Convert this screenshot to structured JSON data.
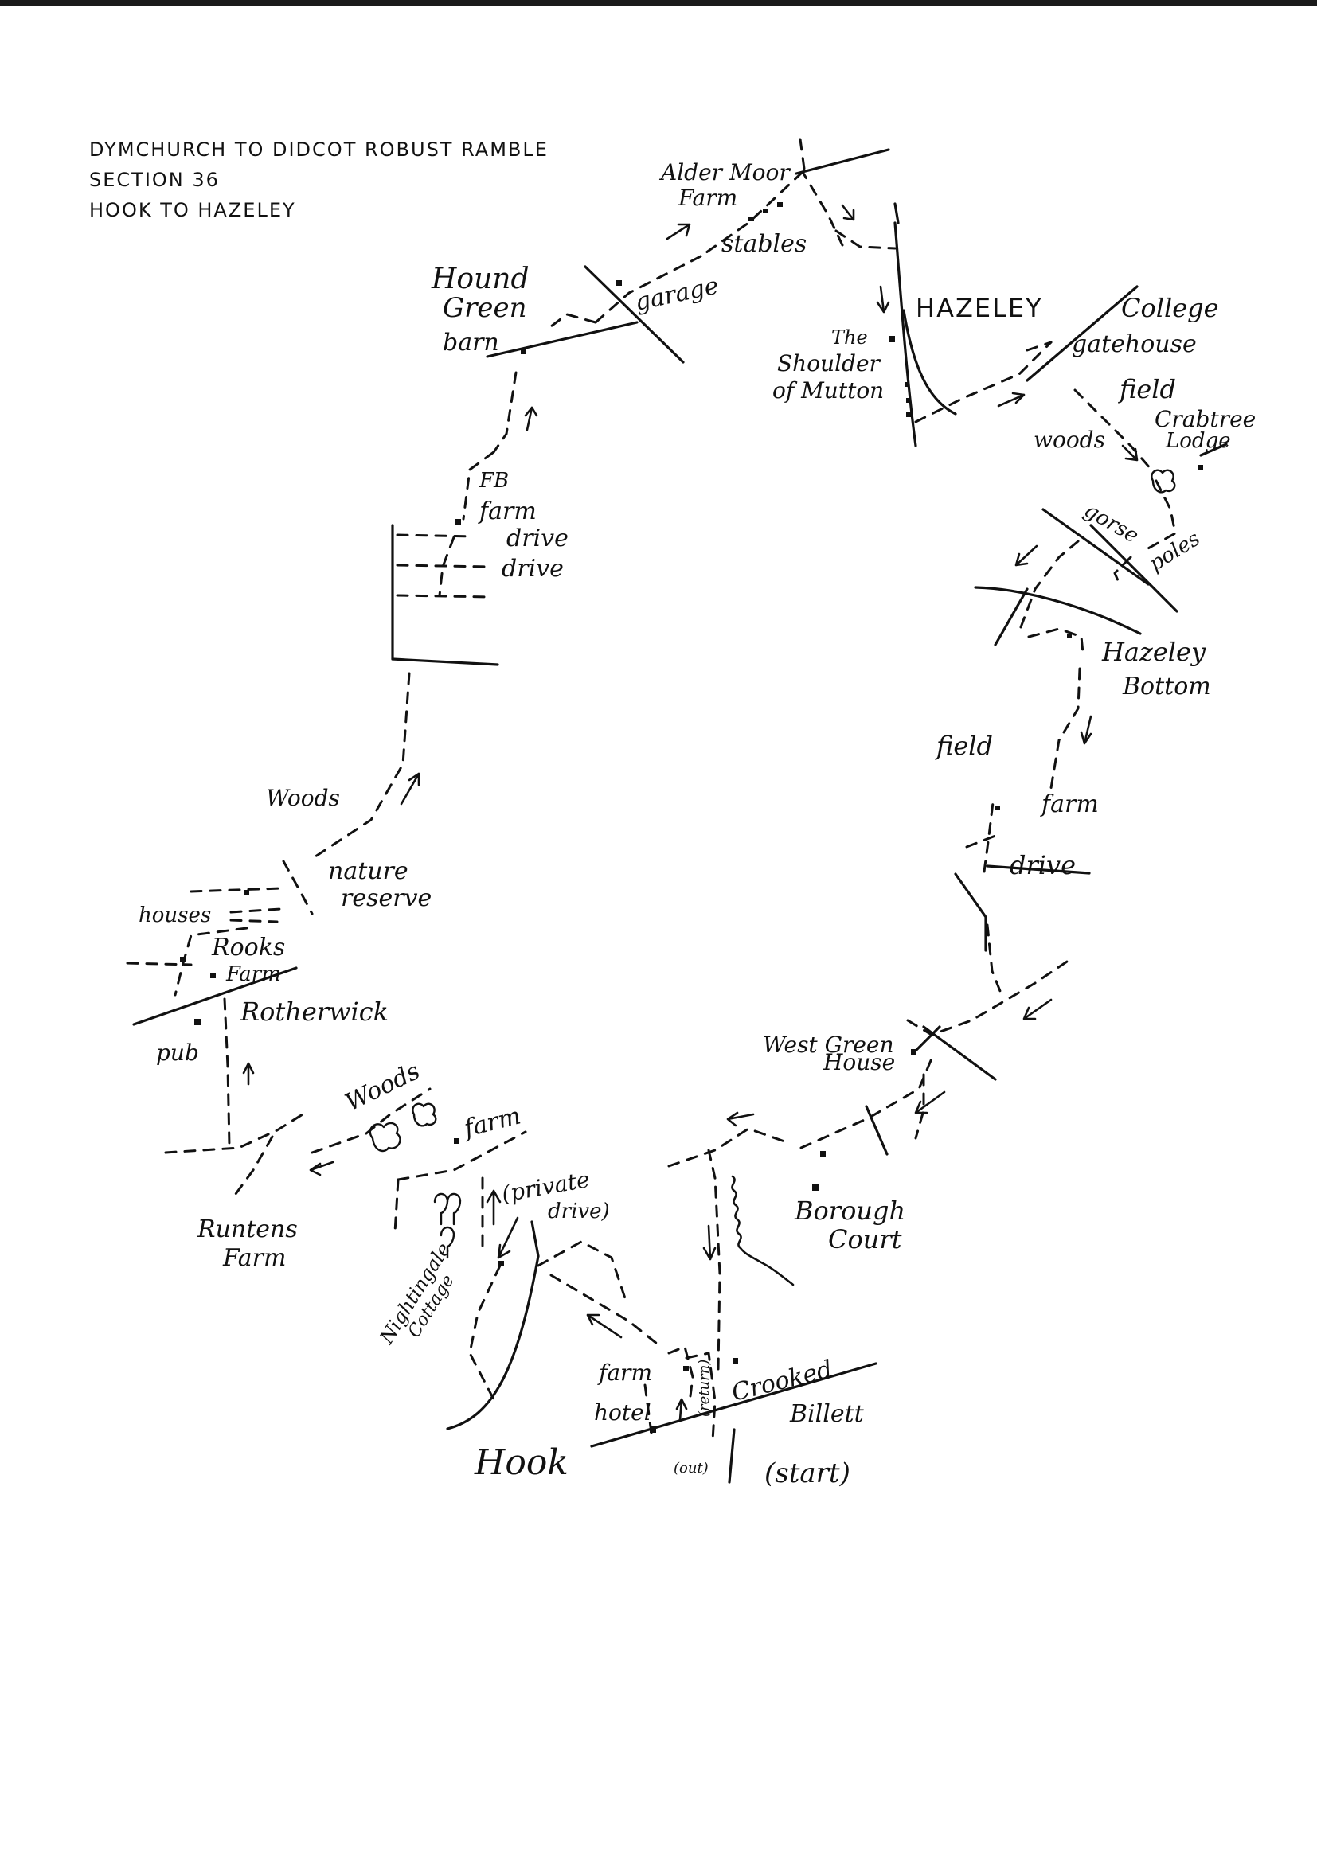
{
  "header": {
    "line1": "DYMCHURCH TO DIDCOT ROBUST RAMBLE",
    "line2": "SECTION 36",
    "line3": "HOOK TO HAZELEY"
  },
  "labels": {
    "alder_moor": "Alder Moor",
    "alder_moor_farm": "Farm",
    "stables": "stables",
    "hound": "Hound",
    "green": "Green",
    "barn": "barn",
    "garage": "garage",
    "hazeley": "HAZELEY",
    "college": "College",
    "gatehouse": "gatehouse",
    "field_ne": "field",
    "crabtree": "Crabtree",
    "lodge": "Lodge",
    "woods_ne": "woods",
    "gorse": "gorse",
    "poles": "poles",
    "shoulder_the": "The",
    "shoulder": "Shoulder",
    "of_mutton": "of Mutton",
    "fb": "FB",
    "farm_nw": "farm",
    "drive1": "drive",
    "drive2": "drive",
    "hazeley_bottom_1": "Hazeley",
    "hazeley_bottom_2": "Bottom",
    "field_e": "field",
    "farm_e": "farm",
    "drive_e": "drive",
    "woods_w": "Woods",
    "nature": "nature",
    "reserve": "reserve",
    "houses": "houses",
    "rooks": "Rooks",
    "rooks_farm": "Farm",
    "rotherwick": "Rotherwick",
    "pub": "pub",
    "west_green": "West Green",
    "house": "House",
    "woods_sw": "Woods",
    "farm_sw": "farm",
    "private": "(private",
    "private_drive": "drive)",
    "runtens": "Runtens",
    "runtens_farm": "Farm",
    "borough": "Borough",
    "court": "Court",
    "nightingale": "Nightingale",
    "cottage": "Cottage",
    "farm_s": "farm",
    "hotel": "hotel",
    "return": "(return)",
    "crooked": "Crooked",
    "billett": "Billett",
    "out": "(out)",
    "hook": "Hook",
    "start": "(start)"
  }
}
